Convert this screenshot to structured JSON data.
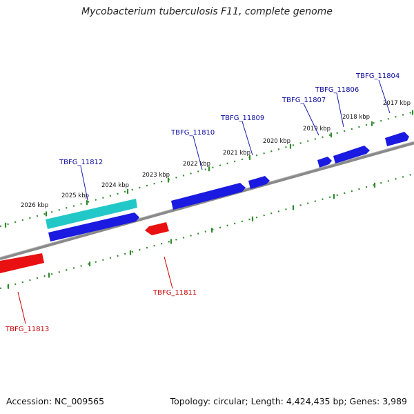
{
  "title": "Mycobacterium tuberculosis F11, complete genome",
  "footer": {
    "accession": "Accession: NC_009565",
    "summary": "Topology: circular; Length: 4,424,435 bp; Genes: 3,989"
  },
  "colors": {
    "forward_gene": "#0000e6",
    "reverse_gene": "#e60000",
    "highlight_gene": "#1ec8c8",
    "backbone": "#808080",
    "ticks": "#2e8b2e",
    "forward_label": "#0a0aa0",
    "reverse_label": "#c80000"
  },
  "kbp_ticks": [
    {
      "label": "2017 kbp",
      "kbp": 2017
    },
    {
      "label": "2018 kbp",
      "kbp": 2018
    },
    {
      "label": "2019 kbp",
      "kbp": 2019
    },
    {
      "label": "2020 kbp",
      "kbp": 2020
    },
    {
      "label": "2021 kbp",
      "kbp": 2021
    },
    {
      "label": "2022 kbp",
      "kbp": 2022
    },
    {
      "label": "2023 kbp",
      "kbp": 2023
    },
    {
      "label": "2024 kbp",
      "kbp": 2024
    },
    {
      "label": "2025 kbp",
      "kbp": 2025
    },
    {
      "label": "2026 kbp",
      "kbp": 2026
    }
  ],
  "genes": [
    {
      "label": "TBFG_11804",
      "strand": "forward"
    },
    {
      "label": "TBFG_11806",
      "strand": "forward"
    },
    {
      "label": "TBFG_11807",
      "strand": "forward"
    },
    {
      "label": "TBFG_11809",
      "strand": "forward"
    },
    {
      "label": "TBFG_11810",
      "strand": "forward"
    },
    {
      "label": "TBFG_11811",
      "strand": "reverse"
    },
    {
      "label": "TBFG_11812",
      "strand": "forward"
    },
    {
      "label": "TBFG_11813",
      "strand": "reverse"
    }
  ]
}
